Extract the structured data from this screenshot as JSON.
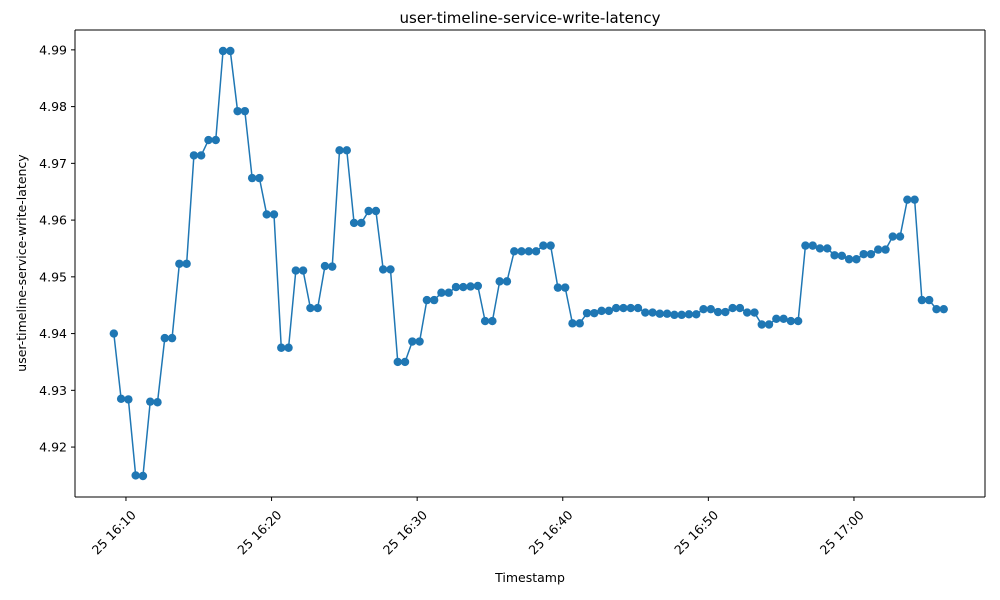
{
  "chart_data": {
    "type": "line",
    "title": "user-timeline-service-write-latency",
    "xlabel": "Timestamp",
    "ylabel": "user-timeline-service-write-latency",
    "grid": false,
    "marker": "circle",
    "color": "#1f77b4",
    "xlim": [
      "2024-01-25 16:06:30",
      "2024-01-25 17:09:00"
    ],
    "ylim": [
      4.9112,
      4.9935
    ],
    "x_ticks": [
      {
        "value": "2024-01-25 16:10:00",
        "label": "25 16:10"
      },
      {
        "value": "2024-01-25 16:20:00",
        "label": "25 16:20"
      },
      {
        "value": "2024-01-25 16:30:00",
        "label": "25 16:30"
      },
      {
        "value": "2024-01-25 16:40:00",
        "label": "25 16:40"
      },
      {
        "value": "2024-01-25 16:50:00",
        "label": "25 16:50"
      },
      {
        "value": "2024-01-25 17:00:00",
        "label": "25 17:00"
      }
    ],
    "y_ticks": [
      {
        "value": 4.92,
        "label": "4.92"
      },
      {
        "value": 4.93,
        "label": "4.93"
      },
      {
        "value": 4.94,
        "label": "4.94"
      },
      {
        "value": 4.95,
        "label": "4.95"
      },
      {
        "value": 4.96,
        "label": "4.96"
      },
      {
        "value": 4.97,
        "label": "4.97"
      },
      {
        "value": 4.98,
        "label": "4.98"
      },
      {
        "value": 4.99,
        "label": "4.99"
      }
    ],
    "series": [
      {
        "x": [
          "2024-01-25 16:09:10",
          "2024-01-25 16:09:40",
          "2024-01-25 16:10:10",
          "2024-01-25 16:10:40",
          "2024-01-25 16:11:10",
          "2024-01-25 16:11:40",
          "2024-01-25 16:12:10",
          "2024-01-25 16:12:40",
          "2024-01-25 16:13:10",
          "2024-01-25 16:13:40",
          "2024-01-25 16:14:10",
          "2024-01-25 16:14:40",
          "2024-01-25 16:15:10",
          "2024-01-25 16:15:40",
          "2024-01-25 16:16:10",
          "2024-01-25 16:16:40",
          "2024-01-25 16:17:10",
          "2024-01-25 16:17:40",
          "2024-01-25 16:18:10",
          "2024-01-25 16:18:40",
          "2024-01-25 16:19:10",
          "2024-01-25 16:19:40",
          "2024-01-25 16:20:10",
          "2024-01-25 16:20:40",
          "2024-01-25 16:21:10",
          "2024-01-25 16:21:40",
          "2024-01-25 16:22:10",
          "2024-01-25 16:22:40",
          "2024-01-25 16:23:10",
          "2024-01-25 16:23:40",
          "2024-01-25 16:24:10",
          "2024-01-25 16:24:40",
          "2024-01-25 16:25:10",
          "2024-01-25 16:25:40",
          "2024-01-25 16:26:10",
          "2024-01-25 16:26:40",
          "2024-01-25 16:27:10",
          "2024-01-25 16:27:40",
          "2024-01-25 16:28:10",
          "2024-01-25 16:28:40",
          "2024-01-25 16:29:10",
          "2024-01-25 16:29:40",
          "2024-01-25 16:30:10",
          "2024-01-25 16:30:40",
          "2024-01-25 16:31:10",
          "2024-01-25 16:31:40",
          "2024-01-25 16:32:10",
          "2024-01-25 16:32:40",
          "2024-01-25 16:33:10",
          "2024-01-25 16:33:40",
          "2024-01-25 16:34:10",
          "2024-01-25 16:34:40",
          "2024-01-25 16:35:10",
          "2024-01-25 16:35:40",
          "2024-01-25 16:36:10",
          "2024-01-25 16:36:40",
          "2024-01-25 16:37:10",
          "2024-01-25 16:37:40",
          "2024-01-25 16:38:10",
          "2024-01-25 16:38:40",
          "2024-01-25 16:39:10",
          "2024-01-25 16:39:40",
          "2024-01-25 16:40:10",
          "2024-01-25 16:40:40",
          "2024-01-25 16:41:10",
          "2024-01-25 16:41:40",
          "2024-01-25 16:42:10",
          "2024-01-25 16:42:40",
          "2024-01-25 16:43:10",
          "2024-01-25 16:43:40",
          "2024-01-25 16:44:10",
          "2024-01-25 16:44:40",
          "2024-01-25 16:45:10",
          "2024-01-25 16:45:40",
          "2024-01-25 16:46:10",
          "2024-01-25 16:46:40",
          "2024-01-25 16:47:10",
          "2024-01-25 16:47:40",
          "2024-01-25 16:48:10",
          "2024-01-25 16:48:40",
          "2024-01-25 16:49:10",
          "2024-01-25 16:49:40",
          "2024-01-25 16:50:10",
          "2024-01-25 16:50:40",
          "2024-01-25 16:51:10",
          "2024-01-25 16:51:40",
          "2024-01-25 16:52:10",
          "2024-01-25 16:52:40",
          "2024-01-25 16:53:10",
          "2024-01-25 16:53:40",
          "2024-01-25 16:54:10",
          "2024-01-25 16:54:40",
          "2024-01-25 16:55:10",
          "2024-01-25 16:55:40",
          "2024-01-25 16:56:10",
          "2024-01-25 16:56:40",
          "2024-01-25 16:57:10",
          "2024-01-25 16:57:40",
          "2024-01-25 16:58:10",
          "2024-01-25 16:58:40",
          "2024-01-25 16:59:10",
          "2024-01-25 16:59:40",
          "2024-01-25 17:00:10",
          "2024-01-25 17:00:40",
          "2024-01-25 17:01:10",
          "2024-01-25 17:01:40",
          "2024-01-25 17:02:10",
          "2024-01-25 17:02:40",
          "2024-01-25 17:03:10",
          "2024-01-25 17:03:40",
          "2024-01-25 17:04:10",
          "2024-01-25 17:04:40",
          "2024-01-25 17:05:10",
          "2024-01-25 17:05:40",
          "2024-01-25 17:06:10"
        ],
        "y": [
          4.94,
          4.9285,
          4.9284,
          4.915,
          4.9149,
          4.928,
          4.9279,
          4.9392,
          4.9392,
          4.9523,
          4.9523,
          4.9714,
          4.9714,
          4.9741,
          4.9741,
          4.9898,
          4.9898,
          4.9792,
          4.9792,
          4.9674,
          4.9674,
          4.961,
          4.961,
          4.9375,
          4.9375,
          4.9511,
          4.9511,
          4.9445,
          4.9445,
          4.9519,
          4.9518,
          4.9723,
          4.9723,
          4.9595,
          4.9595,
          4.9616,
          4.9616,
          4.9513,
          4.9513,
          4.935,
          4.935,
          4.9386,
          4.9386,
          4.9459,
          4.9459,
          4.9472,
          4.9472,
          4.9482,
          4.9482,
          4.9483,
          4.9484,
          4.9422,
          4.9422,
          4.9492,
          4.9492,
          4.9545,
          4.9545,
          4.9545,
          4.9545,
          4.9555,
          4.9555,
          4.9481,
          4.9481,
          4.9418,
          4.9418,
          4.9436,
          4.9436,
          4.944,
          4.944,
          4.9445,
          4.9445,
          4.9445,
          4.9445,
          4.9437,
          4.9437,
          4.9435,
          4.9435,
          4.9433,
          4.9433,
          4.9434,
          4.9434,
          4.9443,
          4.9443,
          4.9438,
          4.9438,
          4.9445,
          4.9445,
          4.9437,
          4.9437,
          4.9416,
          4.9416,
          4.9426,
          4.9426,
          4.9422,
          4.9422,
          4.9555,
          4.9555,
          4.955,
          4.955,
          4.9538,
          4.9537,
          4.9531,
          4.9531,
          4.954,
          4.954,
          4.9548,
          4.9548,
          4.9571,
          4.9571,
          4.9636,
          4.9636,
          4.9459,
          4.9459,
          4.9443,
          4.9443
        ]
      }
    ]
  }
}
